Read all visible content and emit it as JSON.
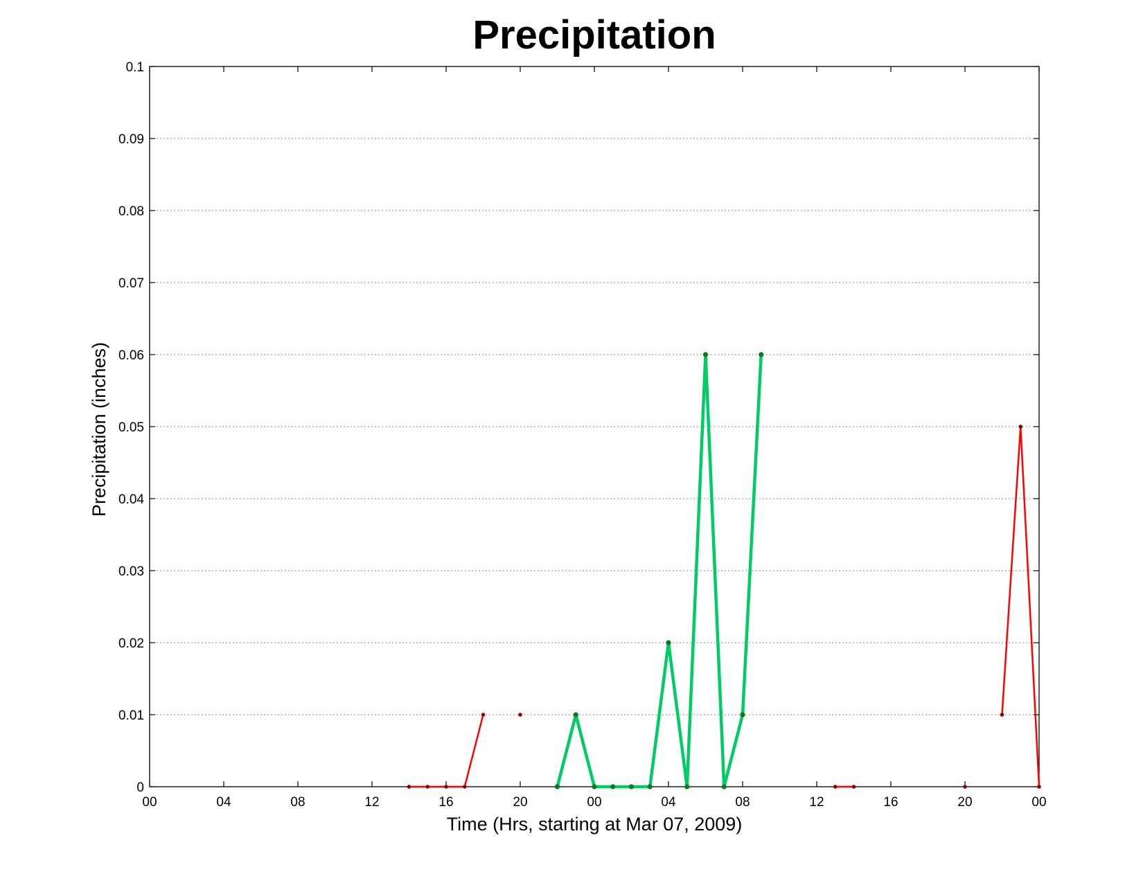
{
  "chart_data": {
    "type": "line",
    "title": "Precipitation",
    "xlabel": "Time (Hrs, starting at Mar 07, 2009)",
    "ylabel": "Precipitation (inches)",
    "ylim": [
      0,
      0.1
    ],
    "xlim": [
      0,
      48
    ],
    "grid": "horizontal dotted",
    "x_unit": "hours since Mar 07, 2009 00:00",
    "x_ticks": [
      {
        "x": 0,
        "label": "00"
      },
      {
        "x": 4,
        "label": "04"
      },
      {
        "x": 8,
        "label": "08"
      },
      {
        "x": 12,
        "label": "12"
      },
      {
        "x": 16,
        "label": "16"
      },
      {
        "x": 20,
        "label": "20"
      },
      {
        "x": 24,
        "label": "00"
      },
      {
        "x": 28,
        "label": "04"
      },
      {
        "x": 32,
        "label": "08"
      },
      {
        "x": 36,
        "label": "12"
      },
      {
        "x": 40,
        "label": "16"
      },
      {
        "x": 44,
        "label": "20"
      },
      {
        "x": 48,
        "label": "00"
      }
    ],
    "y_ticks": [
      {
        "y": 0,
        "label": "0"
      },
      {
        "y": 0.01,
        "label": "0.01"
      },
      {
        "y": 0.02,
        "label": "0.02"
      },
      {
        "y": 0.03,
        "label": "0.03"
      },
      {
        "y": 0.04,
        "label": "0.04"
      },
      {
        "y": 0.05,
        "label": "0.05"
      },
      {
        "y": 0.06,
        "label": "0.06"
      },
      {
        "y": 0.07,
        "label": "0.07"
      },
      {
        "y": 0.08,
        "label": "0.08"
      },
      {
        "y": 0.09,
        "label": "0.09"
      },
      {
        "y": 0.1,
        "label": "0.1"
      }
    ],
    "series": [
      {
        "color": "#ff0000",
        "marker_color": "#8b0000",
        "segments": [
          [
            [
              14,
              0
            ],
            [
              15,
              0
            ],
            [
              16,
              0
            ],
            [
              17,
              0
            ],
            [
              18,
              0.01
            ]
          ],
          [
            [
              20,
              0.01
            ]
          ],
          [
            [
              37,
              0
            ],
            [
              38,
              0
            ]
          ],
          [
            [
              44,
              0
            ]
          ],
          [
            [
              46,
              0.01
            ],
            [
              47,
              0.05
            ],
            [
              48,
              0
            ]
          ]
        ]
      },
      {
        "color": "#00cc66",
        "marker_color": "#0a7a1f",
        "segments": [
          [
            [
              22,
              0
            ],
            [
              23,
              0.01
            ],
            [
              24,
              0
            ],
            [
              25,
              0
            ],
            [
              26,
              0
            ],
            [
              27,
              0
            ],
            [
              28,
              0.02
            ],
            [
              29,
              0
            ],
            [
              30,
              0.06
            ],
            [
              31,
              0
            ],
            [
              32,
              0.01
            ],
            [
              33,
              0.06
            ]
          ]
        ]
      }
    ]
  }
}
